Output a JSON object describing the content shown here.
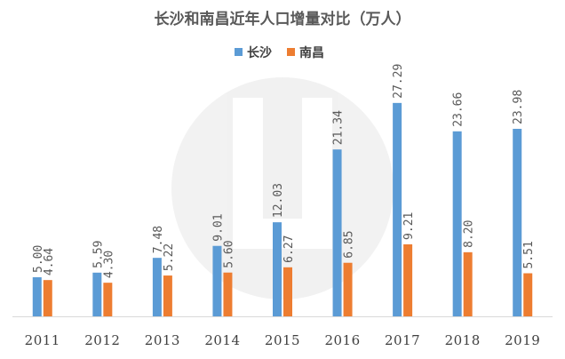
{
  "chart_data": {
    "type": "bar",
    "title": "长沙和南昌近年人口增量对比（万人）",
    "xlabel": "",
    "ylabel": "",
    "categories": [
      "2011",
      "2012",
      "2013",
      "2014",
      "2015",
      "2016",
      "2017",
      "2018",
      "2019"
    ],
    "series": [
      {
        "name": "长沙",
        "color": "#5B9BD5",
        "values": [
          5.0,
          5.59,
          7.48,
          9.01,
          12.03,
          21.34,
          27.29,
          23.66,
          23.98
        ],
        "labels": [
          "5.00",
          "5.59",
          "7.48",
          "9.01",
          "12.03",
          "21.34",
          "27.29",
          "23.66",
          "23.98"
        ]
      },
      {
        "name": "南昌",
        "color": "#ED7D31",
        "values": [
          4.64,
          4.3,
          5.22,
          5.6,
          6.27,
          6.85,
          9.21,
          8.2,
          5.51
        ],
        "labels": [
          "4.64",
          "4.30",
          "5.22",
          "5.60",
          "6.27",
          "6.85",
          "9.21",
          "8.20",
          "5.51"
        ]
      }
    ],
    "ylim": [
      0,
      30
    ],
    "grid": false,
    "legend_position": "top-center",
    "axis_color": "#D9D9D9"
  }
}
